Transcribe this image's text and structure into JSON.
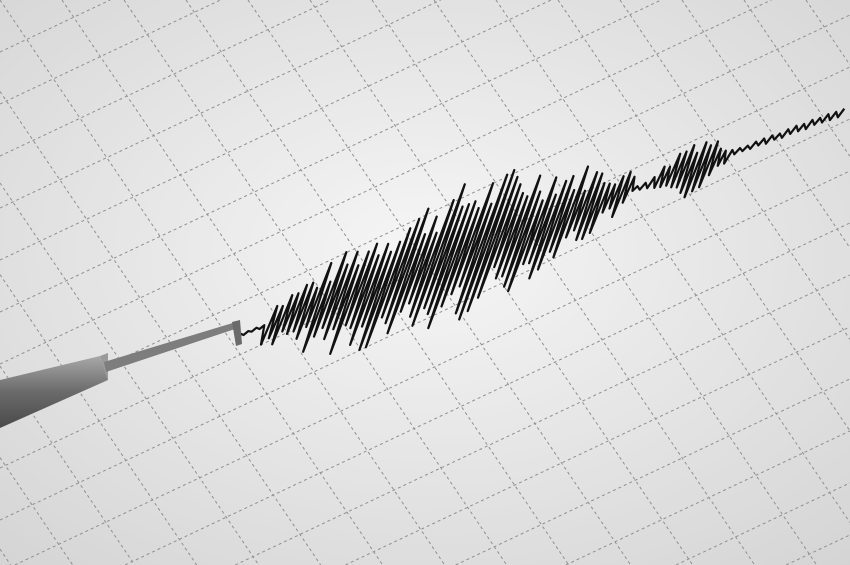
{
  "scene": {
    "subject": "seismograph",
    "colors": {
      "paper": "#ececec",
      "grid": "#9a9a9a",
      "trace": "#111111",
      "needle": "#7a7a7a"
    }
  }
}
